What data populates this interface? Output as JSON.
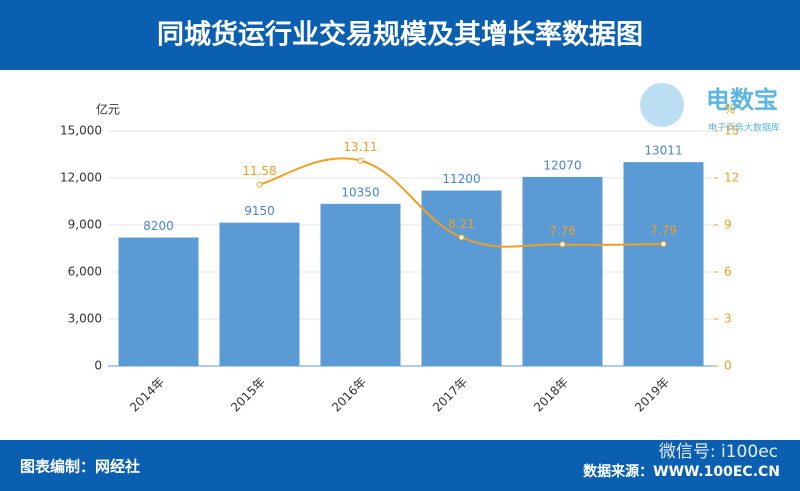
{
  "header": {
    "title": "同城货运行业交易规模及其增长率数据图"
  },
  "logo": {
    "name": "电数宝",
    "subtitle": "电子商务大数据库"
  },
  "chart_data": {
    "type": "bar",
    "y_label": "亿元",
    "y2_label": "%",
    "categories": [
      "2014年",
      "2015年",
      "2016年",
      "2017年",
      "2018年",
      "2019年"
    ],
    "series": [
      {
        "type": "bar",
        "color": "#5b9bd5",
        "values": [
          8200,
          9150,
          10350,
          11200,
          12070,
          13011
        ]
      },
      {
        "type": "line",
        "axis": "y2",
        "color": "#f0a020",
        "values": [
          null,
          11.58,
          13.11,
          8.21,
          7.76,
          7.79
        ]
      }
    ],
    "ylim": [
      0,
      15000
    ],
    "yticks": [
      0,
      {
        "value": 3000,
        "label": "3,000"
      },
      {
        "value": 6000,
        "label": "6,000"
      },
      {
        "value": 9000,
        "label": "9,000"
      },
      {
        "value": 12000,
        "label": "12,000"
      },
      {
        "value": 15000,
        "label": "15,000"
      }
    ],
    "y2lim": [
      0,
      15
    ],
    "y2ticks": [
      0,
      3,
      6,
      9,
      12,
      15
    ],
    "grid": true
  },
  "footer": {
    "credit": "图表编制：网经社",
    "source": "数据来源：WWW.100EC.CN",
    "watermark": "微信号: i100ec"
  }
}
